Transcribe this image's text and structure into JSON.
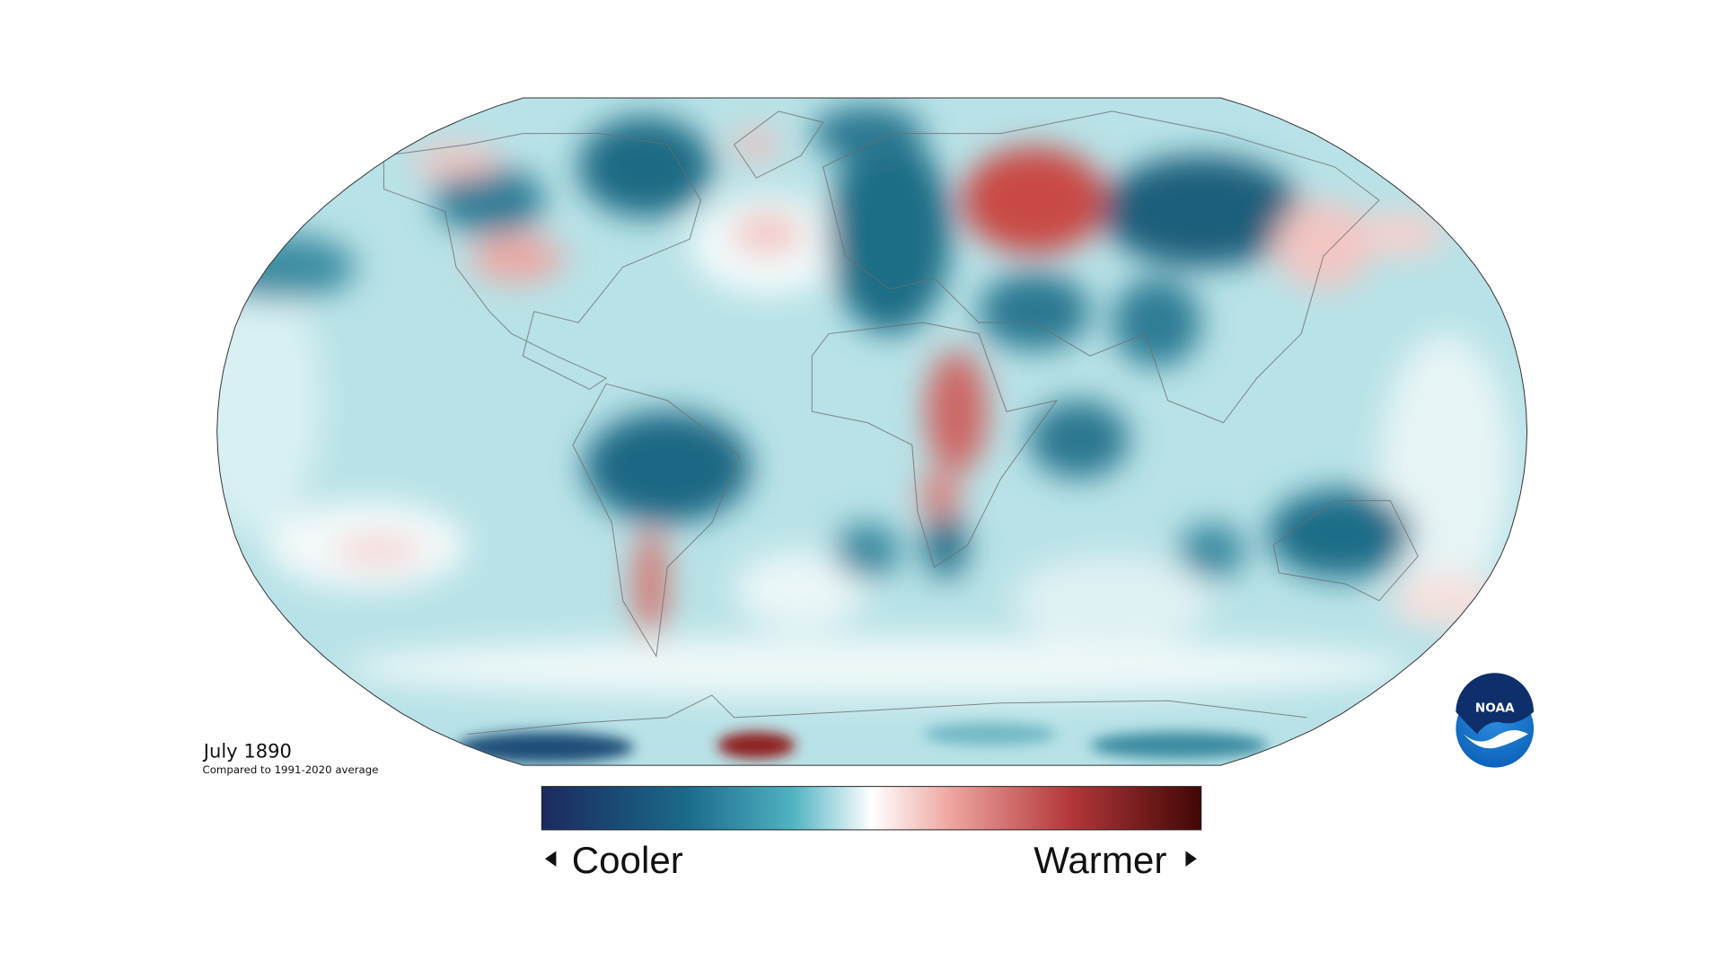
{
  "map": {
    "title": "July 1890",
    "subtitle": "Compared to 1991-2020 average",
    "legend": {
      "low": "Cooler",
      "high": "Warmer"
    },
    "logo": "NOAA"
  }
}
